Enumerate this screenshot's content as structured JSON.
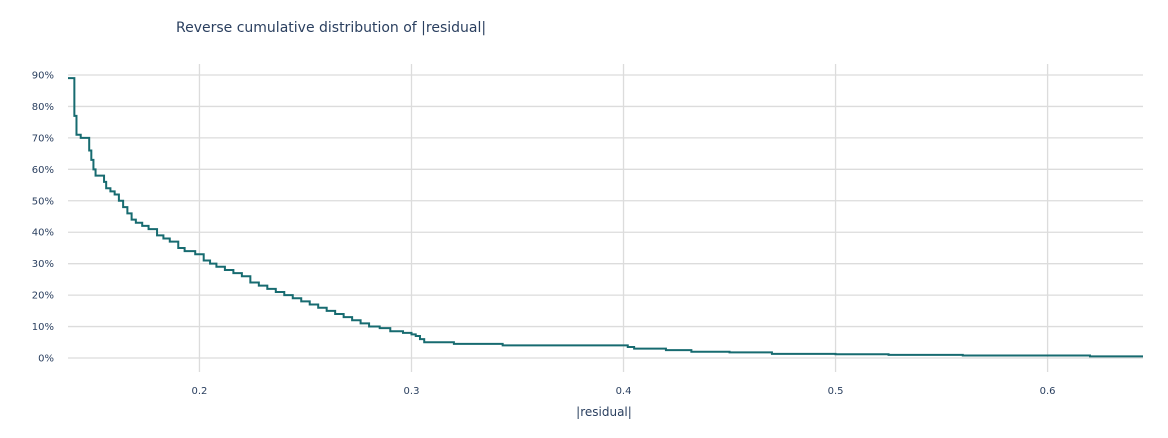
{
  "chart_data": {
    "type": "line",
    "title": "Reverse cumulative distribution of |residual|",
    "xlabel": "|residual|",
    "ylabel": "",
    "xlim": [
      0.138,
      0.645
    ],
    "ylim": [
      0,
      0.9
    ],
    "x_ticks": [
      0.2,
      0.3,
      0.4,
      0.5,
      0.6
    ],
    "x_tick_labels": [
      "0.2",
      "0.3",
      "0.4",
      "0.5",
      "0.6"
    ],
    "y_ticks": [
      0,
      0.1,
      0.2,
      0.3,
      0.4,
      0.5,
      0.6,
      0.7,
      0.8,
      0.9
    ],
    "y_tick_labels": [
      "0%",
      "10%",
      "20%",
      "30%",
      "40%",
      "50%",
      "60%",
      "70%",
      "80%",
      "90%"
    ],
    "grid": true,
    "legend": "none",
    "line_shape": "step",
    "colors": {
      "line": "#176b70",
      "grid": "#dcdcdc",
      "text": "#2a3f5f"
    },
    "series": [
      {
        "x": [
          0.138,
          0.141,
          0.142,
          0.144,
          0.148,
          0.149,
          0.15,
          0.151,
          0.152,
          0.155,
          0.156,
          0.158,
          0.16,
          0.162,
          0.164,
          0.166,
          0.168,
          0.17,
          0.173,
          0.176,
          0.18,
          0.183,
          0.186,
          0.19,
          0.193,
          0.198,
          0.202,
          0.205,
          0.208,
          0.212,
          0.216,
          0.22,
          0.224,
          0.228,
          0.232,
          0.236,
          0.24,
          0.244,
          0.248,
          0.252,
          0.256,
          0.26,
          0.264,
          0.268,
          0.272,
          0.276,
          0.28,
          0.285,
          0.29,
          0.296,
          0.3,
          0.302,
          0.304,
          0.306,
          0.31,
          0.32,
          0.343,
          0.36,
          0.38,
          0.4,
          0.402,
          0.405,
          0.42,
          0.432,
          0.45,
          0.47,
          0.5,
          0.525,
          0.56,
          0.6,
          0.62,
          0.645
        ],
        "y": [
          0.89,
          0.77,
          0.71,
          0.7,
          0.66,
          0.63,
          0.6,
          0.58,
          0.58,
          0.56,
          0.54,
          0.53,
          0.52,
          0.5,
          0.48,
          0.46,
          0.44,
          0.43,
          0.42,
          0.41,
          0.39,
          0.38,
          0.37,
          0.35,
          0.34,
          0.33,
          0.31,
          0.3,
          0.29,
          0.28,
          0.27,
          0.26,
          0.24,
          0.23,
          0.22,
          0.21,
          0.2,
          0.19,
          0.18,
          0.17,
          0.16,
          0.15,
          0.14,
          0.13,
          0.12,
          0.11,
          0.1,
          0.095,
          0.085,
          0.08,
          0.075,
          0.07,
          0.06,
          0.05,
          0.05,
          0.045,
          0.04,
          0.04,
          0.04,
          0.04,
          0.035,
          0.03,
          0.025,
          0.02,
          0.018,
          0.013,
          0.012,
          0.01,
          0.008,
          0.008,
          0.005,
          0.005
        ]
      }
    ]
  }
}
